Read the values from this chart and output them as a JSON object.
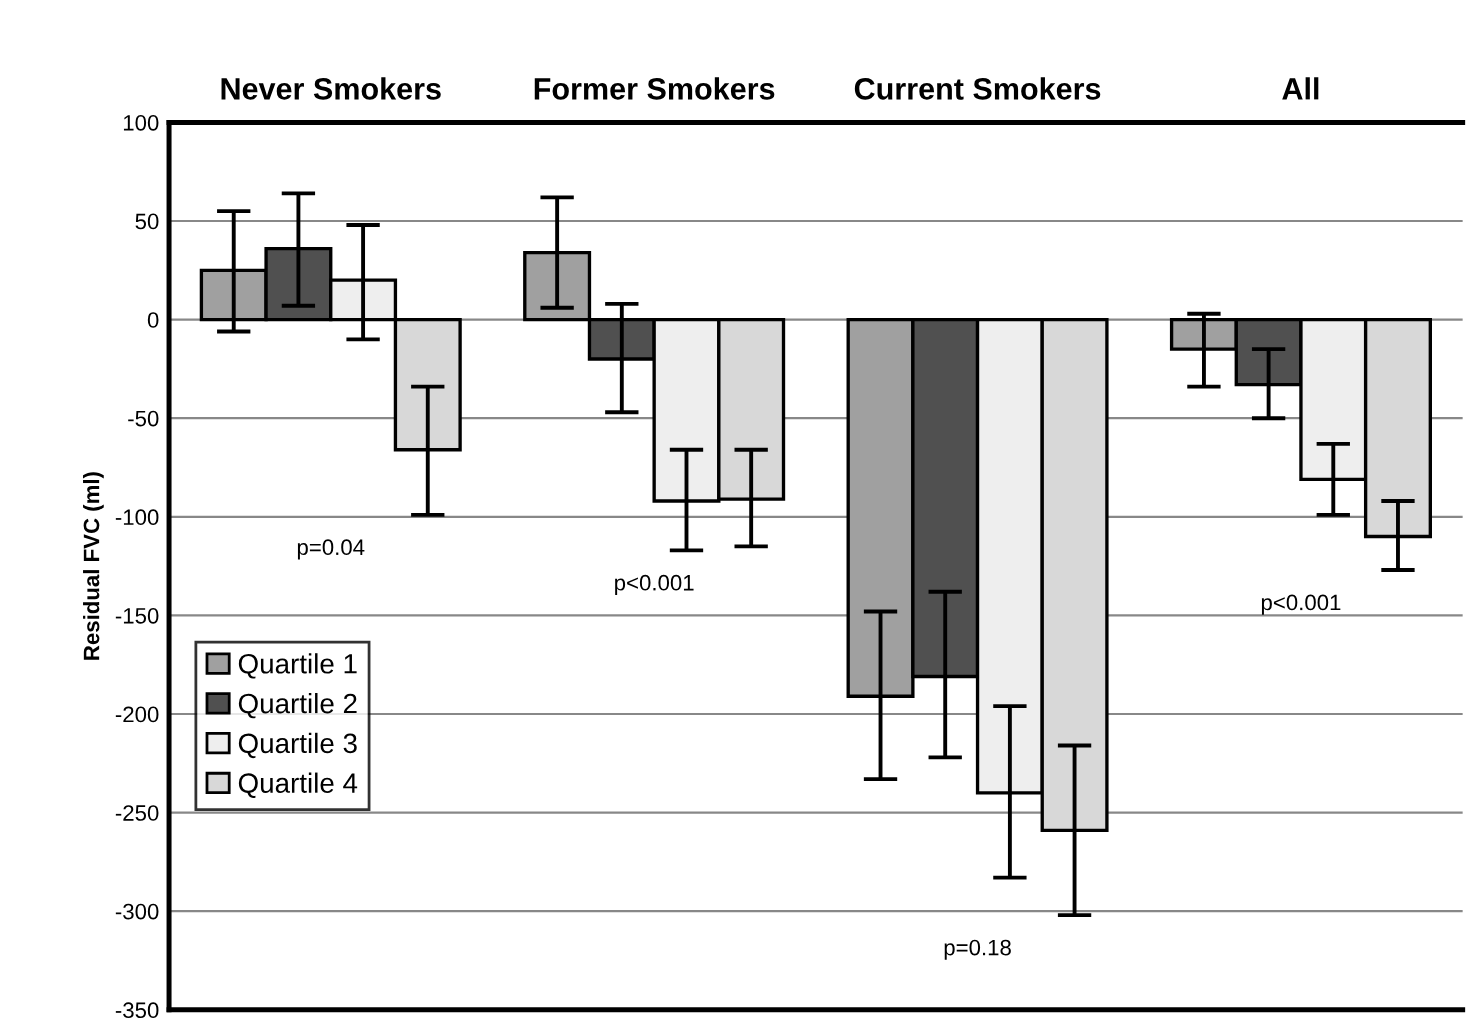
{
  "chart_data": {
    "type": "bar",
    "ylabel": "Residual FVC (ml)",
    "categories": [
      "Never Smokers",
      "Former Smokers",
      "Current Smokers",
      "All"
    ],
    "series": [
      {
        "name": "Quartile 1",
        "color": "#a0a0a0",
        "values": [
          25,
          34,
          -191,
          -15
        ],
        "errors": [
          [
            -6,
            55
          ],
          [
            6,
            62
          ],
          [
            -233,
            -148
          ],
          [
            -34,
            3
          ]
        ]
      },
      {
        "name": "Quartile 2",
        "color": "#505050",
        "values": [
          36,
          -20,
          -181,
          -33
        ],
        "errors": [
          [
            7,
            64
          ],
          [
            -47,
            8
          ],
          [
            -222,
            -138
          ],
          [
            -50,
            -15
          ]
        ]
      },
      {
        "name": "Quartile 3",
        "color": "#eeeeee",
        "values": [
          20,
          -92,
          -240,
          -81
        ],
        "errors": [
          [
            -10,
            48
          ],
          [
            -117,
            -66
          ],
          [
            -283,
            -196
          ],
          [
            -99,
            -63
          ]
        ]
      },
      {
        "name": "Quartile 4",
        "color": "#d8d8d8",
        "values": [
          -66,
          -91,
          -259,
          -110
        ],
        "errors": [
          [
            -99,
            -34
          ],
          [
            -115,
            -66
          ],
          [
            -302,
            -216
          ],
          [
            -127,
            -92
          ]
        ]
      }
    ],
    "annotations": [
      "p=0.04",
      "p<0.001",
      "p=0.18",
      "p<0.001"
    ],
    "ylim": [
      -350,
      100
    ],
    "yticks": [
      -350,
      -300,
      -250,
      -200,
      -150,
      -100,
      -50,
      0,
      50,
      100
    ],
    "grid": "y",
    "legend": "left"
  }
}
